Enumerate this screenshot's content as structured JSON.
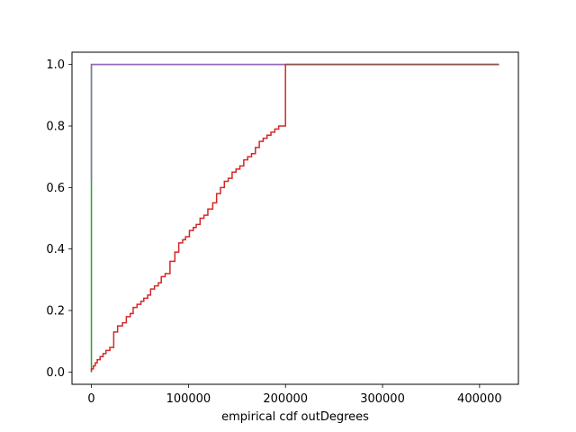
{
  "chart_data": {
    "type": "line",
    "subtype": "step-ecdf",
    "title": "",
    "xlabel": "empirical cdf outDegrees",
    "ylabel": "",
    "xlim": [
      -20000,
      440000
    ],
    "ylim": [
      -0.04,
      1.04
    ],
    "grid": false,
    "legend": "none",
    "x_ticks": [
      0,
      100000,
      200000,
      300000,
      400000
    ],
    "x_tick_labels": [
      "0",
      "100000",
      "200000",
      "300000",
      "400000"
    ],
    "y_ticks": [
      0.0,
      0.2,
      0.4,
      0.6,
      0.8,
      1.0
    ],
    "y_tick_labels": [
      "0.0",
      "0.2",
      "0.4",
      "0.6",
      "0.8",
      "1.0"
    ],
    "series": [
      {
        "color": "#2ca02c",
        "points": [
          [
            0,
            0.0
          ],
          [
            0,
            0.62
          ],
          [
            0,
            1.0
          ],
          [
            420000,
            1.0
          ]
        ]
      },
      {
        "color": "#9467bd",
        "points": [
          [
            0,
            0.62
          ],
          [
            0,
            1.0
          ],
          [
            420000,
            1.0
          ]
        ]
      },
      {
        "color": "#d62728",
        "points": [
          [
            0,
            0.0
          ],
          [
            0,
            0.01
          ],
          [
            2000,
            0.01
          ],
          [
            2000,
            0.02
          ],
          [
            4000,
            0.02
          ],
          [
            4000,
            0.03
          ],
          [
            6000,
            0.03
          ],
          [
            6000,
            0.04
          ],
          [
            9000,
            0.04
          ],
          [
            9000,
            0.05
          ],
          [
            12000,
            0.05
          ],
          [
            12000,
            0.06
          ],
          [
            15000,
            0.06
          ],
          [
            15000,
            0.07
          ],
          [
            19000,
            0.07
          ],
          [
            19000,
            0.08
          ],
          [
            23000,
            0.08
          ],
          [
            23000,
            0.13
          ],
          [
            27000,
            0.13
          ],
          [
            27000,
            0.15
          ],
          [
            32000,
            0.15
          ],
          [
            32000,
            0.16
          ],
          [
            36000,
            0.16
          ],
          [
            36000,
            0.18
          ],
          [
            40000,
            0.18
          ],
          [
            40000,
            0.19
          ],
          [
            43000,
            0.19
          ],
          [
            43000,
            0.21
          ],
          [
            47000,
            0.21
          ],
          [
            47000,
            0.22
          ],
          [
            51000,
            0.22
          ],
          [
            51000,
            0.23
          ],
          [
            54000,
            0.23
          ],
          [
            54000,
            0.24
          ],
          [
            58000,
            0.24
          ],
          [
            58000,
            0.25
          ],
          [
            61000,
            0.25
          ],
          [
            61000,
            0.27
          ],
          [
            65000,
            0.27
          ],
          [
            65000,
            0.28
          ],
          [
            69000,
            0.28
          ],
          [
            69000,
            0.29
          ],
          [
            72000,
            0.29
          ],
          [
            72000,
            0.31
          ],
          [
            76000,
            0.31
          ],
          [
            76000,
            0.32
          ],
          [
            81000,
            0.32
          ],
          [
            81000,
            0.36
          ],
          [
            86000,
            0.36
          ],
          [
            86000,
            0.39
          ],
          [
            90000,
            0.39
          ],
          [
            90000,
            0.42
          ],
          [
            94000,
            0.42
          ],
          [
            94000,
            0.43
          ],
          [
            97000,
            0.43
          ],
          [
            97000,
            0.44
          ],
          [
            101000,
            0.44
          ],
          [
            101000,
            0.46
          ],
          [
            105000,
            0.46
          ],
          [
            105000,
            0.47
          ],
          [
            108000,
            0.47
          ],
          [
            108000,
            0.48
          ],
          [
            112000,
            0.48
          ],
          [
            112000,
            0.5
          ],
          [
            116000,
            0.5
          ],
          [
            116000,
            0.51
          ],
          [
            120000,
            0.51
          ],
          [
            120000,
            0.53
          ],
          [
            125000,
            0.53
          ],
          [
            125000,
            0.55
          ],
          [
            129000,
            0.55
          ],
          [
            129000,
            0.58
          ],
          [
            133000,
            0.58
          ],
          [
            133000,
            0.6
          ],
          [
            137000,
            0.6
          ],
          [
            137000,
            0.62
          ],
          [
            141000,
            0.62
          ],
          [
            141000,
            0.63
          ],
          [
            145000,
            0.63
          ],
          [
            145000,
            0.65
          ],
          [
            149000,
            0.65
          ],
          [
            149000,
            0.66
          ],
          [
            153000,
            0.66
          ],
          [
            153000,
            0.67
          ],
          [
            157000,
            0.67
          ],
          [
            157000,
            0.69
          ],
          [
            161000,
            0.69
          ],
          [
            161000,
            0.7
          ],
          [
            165000,
            0.7
          ],
          [
            165000,
            0.71
          ],
          [
            169000,
            0.71
          ],
          [
            169000,
            0.73
          ],
          [
            173000,
            0.73
          ],
          [
            173000,
            0.75
          ],
          [
            177000,
            0.75
          ],
          [
            177000,
            0.76
          ],
          [
            181000,
            0.76
          ],
          [
            181000,
            0.77
          ],
          [
            185000,
            0.77
          ],
          [
            185000,
            0.78
          ],
          [
            189000,
            0.78
          ],
          [
            189000,
            0.79
          ],
          [
            193000,
            0.79
          ],
          [
            193000,
            0.8
          ],
          [
            200000,
            0.8
          ],
          [
            200000,
            1.0
          ],
          [
            420000,
            1.0
          ]
        ]
      },
      {
        "color": "#8c564b",
        "points": [
          [
            200000,
            1.0
          ],
          [
            420000,
            1.0
          ]
        ]
      }
    ]
  }
}
